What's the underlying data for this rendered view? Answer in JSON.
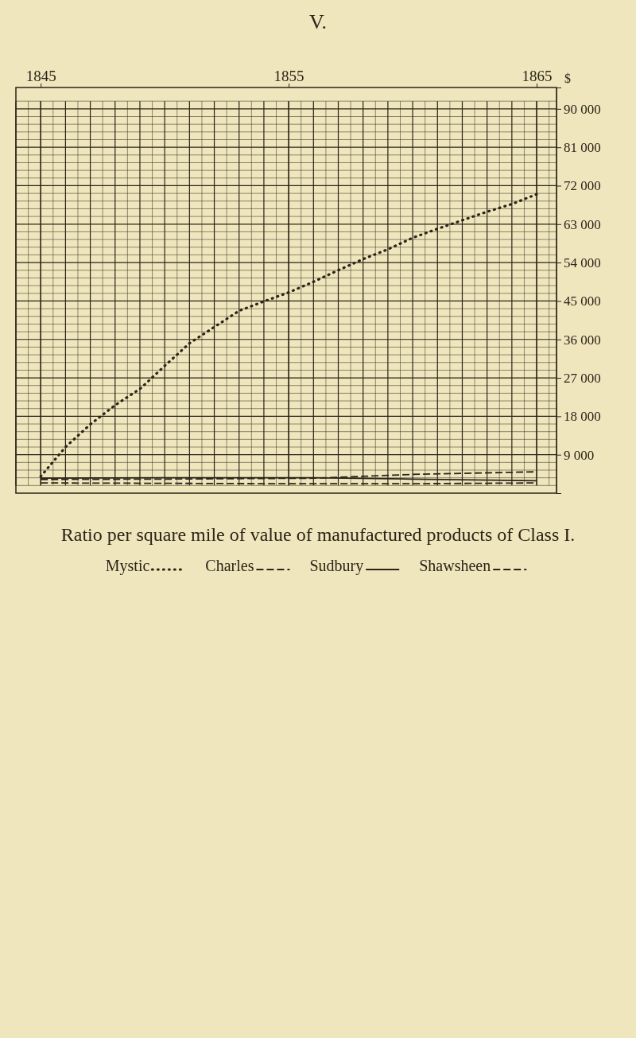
{
  "chart_data": {
    "type": "line",
    "title": "Ratio per square mile of value of manufactured products of Class I.",
    "ylabel": "$",
    "annotations": [
      "V."
    ],
    "xlim": [
      1844,
      1865.8
    ],
    "xticks": [
      1845,
      1855,
      1865
    ],
    "ylim": [
      0,
      95000
    ],
    "yticks": [
      {
        "value": 0,
        "label": null
      },
      {
        "value": 9000,
        "label": "9 000"
      },
      {
        "value": 18000,
        "label": "18 000"
      },
      {
        "value": 27000,
        "label": "27 000"
      },
      {
        "value": 36000,
        "label": "36 000"
      },
      {
        "value": 45000,
        "label": "45 000"
      },
      {
        "value": 54000,
        "label": "54 000"
      },
      {
        "value": 63000,
        "label": "63 000"
      },
      {
        "value": 72000,
        "label": "72 000"
      },
      {
        "value": 81000,
        "label": "81 000"
      },
      {
        "value": 90000,
        "label": "90 000"
      }
    ],
    "grid": true,
    "legend": "right",
    "series": [
      {
        "name": "Mystic",
        "color": "#2b2418",
        "line_style": "dotted",
        "x": [
          1845,
          1846,
          1847,
          1848,
          1849,
          1850,
          1851,
          1852,
          1853,
          1854,
          1855,
          1856,
          1857,
          1858,
          1859,
          1860,
          1861,
          1862,
          1863,
          1864,
          1865
        ],
        "values": [
          3900,
          10800,
          16100,
          20600,
          24400,
          29800,
          35100,
          38900,
          42700,
          44900,
          47000,
          49500,
          52200,
          54800,
          57100,
          59800,
          61900,
          63900,
          65900,
          67700,
          70000
        ]
      },
      {
        "name": "Charles",
        "color": "#2b2418",
        "line_style": "dashed",
        "x": [
          1845,
          1850,
          1856,
          1860,
          1865
        ],
        "values": [
          3200,
          3300,
          3500,
          4400,
          5000
        ]
      },
      {
        "name": "Sudbury",
        "color": "#2b2418",
        "line_style": "solid",
        "x": [
          1845,
          1850,
          1856,
          1860,
          1865
        ],
        "values": [
          3500,
          3600,
          3600,
          3300,
          2900
        ]
      },
      {
        "name": "Shawsheen",
        "color": "#2b2418",
        "line_style": "dashed",
        "x": [
          1845,
          1850,
          1855,
          1860,
          1865
        ],
        "values": [
          2400,
          2300,
          2200,
          2200,
          2400
        ]
      }
    ]
  }
}
